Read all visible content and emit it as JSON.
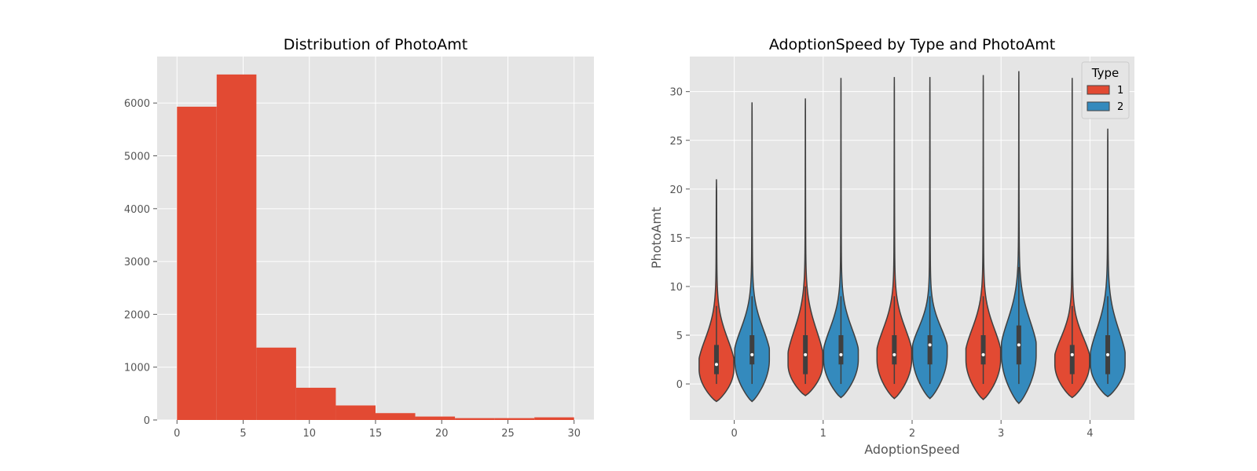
{
  "chart_data": [
    {
      "type": "bar",
      "subtype": "histogram",
      "title": "Distribution of PhotoAmt",
      "xlabel": "",
      "ylabel": "",
      "bin_edges": [
        0,
        3,
        6,
        9,
        12,
        15,
        18,
        21,
        24,
        27,
        30
      ],
      "values": [
        5930,
        6540,
        1370,
        610,
        275,
        130,
        65,
        35,
        35,
        50
      ],
      "xlim": [
        -1.5,
        31.5
      ],
      "ylim": [
        0,
        6880
      ],
      "xticks": [
        0,
        5,
        10,
        15,
        20,
        25,
        30
      ],
      "yticks": [
        0,
        1000,
        2000,
        3000,
        4000,
        5000,
        6000
      ],
      "grid": true,
      "color": "#E24A33"
    },
    {
      "type": "violin",
      "title": "AdoptionSpeed by Type and PhotoAmt",
      "xlabel": "AdoptionSpeed",
      "ylabel": "PhotoAmt",
      "categories": [
        "0",
        "1",
        "2",
        "3",
        "4"
      ],
      "ylim": [
        -3.7,
        33.6
      ],
      "yticks": [
        0,
        5,
        10,
        15,
        20,
        25,
        30
      ],
      "grid": true,
      "legend": {
        "title": "Type",
        "position": "top-right"
      },
      "series": [
        {
          "name": "1",
          "color": "#E24A33",
          "violins": [
            {
              "median": 2,
              "q1": 1,
              "q3": 4,
              "whisker_low": 0,
              "whisker_high": 8,
              "min": -1.8,
              "max": 21
            },
            {
              "median": 3,
              "q1": 1,
              "q3": 5,
              "whisker_low": 0,
              "whisker_high": 10,
              "min": -1.2,
              "max": 29.3
            },
            {
              "median": 3,
              "q1": 2,
              "q3": 5,
              "whisker_low": 0,
              "whisker_high": 9,
              "min": -1.5,
              "max": 31.5
            },
            {
              "median": 3,
              "q1": 2,
              "q3": 5,
              "whisker_low": 0,
              "whisker_high": 9,
              "min": -1.6,
              "max": 31.7
            },
            {
              "median": 3,
              "q1": 1,
              "q3": 4,
              "whisker_low": 0,
              "whisker_high": 8,
              "min": -1.4,
              "max": 31.4
            }
          ]
        },
        {
          "name": "2",
          "color": "#348ABD",
          "violins": [
            {
              "median": 3,
              "q1": 2,
              "q3": 5,
              "whisker_low": 0,
              "whisker_high": 9,
              "min": -1.8,
              "max": 28.9
            },
            {
              "median": 3,
              "q1": 2,
              "q3": 5,
              "whisker_low": 0,
              "whisker_high": 9,
              "min": -1.4,
              "max": 31.4
            },
            {
              "median": 4,
              "q1": 2,
              "q3": 5,
              "whisker_low": 0,
              "whisker_high": 9,
              "min": -1.5,
              "max": 31.5
            },
            {
              "median": 4,
              "q1": 2,
              "q3": 6,
              "whisker_low": 0,
              "whisker_high": 12,
              "min": -2.0,
              "max": 32.1
            },
            {
              "median": 3,
              "q1": 1,
              "q3": 5,
              "whisker_low": 0,
              "whisker_high": 9,
              "min": -1.3,
              "max": 26.2
            }
          ]
        }
      ]
    }
  ]
}
